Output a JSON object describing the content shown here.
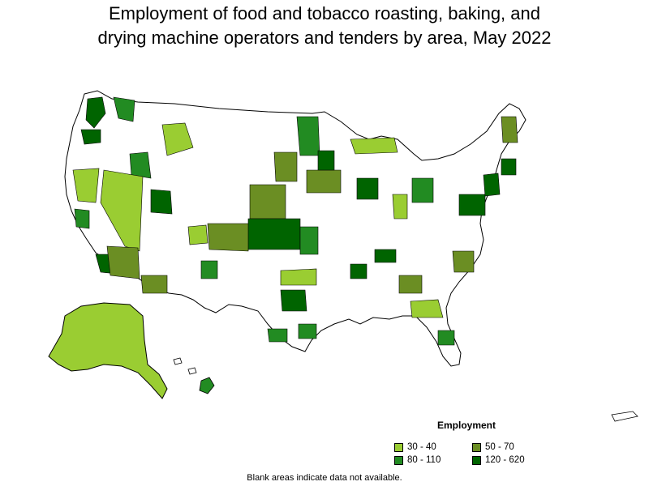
{
  "title": {
    "line1": "Employment of food and tobacco roasting, baking, and",
    "line2": "drying machine operators and tenders by area, May 2022"
  },
  "legend": {
    "title": "Employment",
    "items": [
      {
        "label": "30 - 40",
        "color": "#9acd32"
      },
      {
        "label": "50 - 70",
        "color": "#6b8e23"
      },
      {
        "label": "80 - 110",
        "color": "#228b22"
      },
      {
        "label": "120 - 620",
        "color": "#006400"
      }
    ]
  },
  "footnote": "Blank areas indicate data not available.",
  "colors": {
    "blank": "#ffffff",
    "border": "#000000",
    "interior_border": "#333333"
  }
}
